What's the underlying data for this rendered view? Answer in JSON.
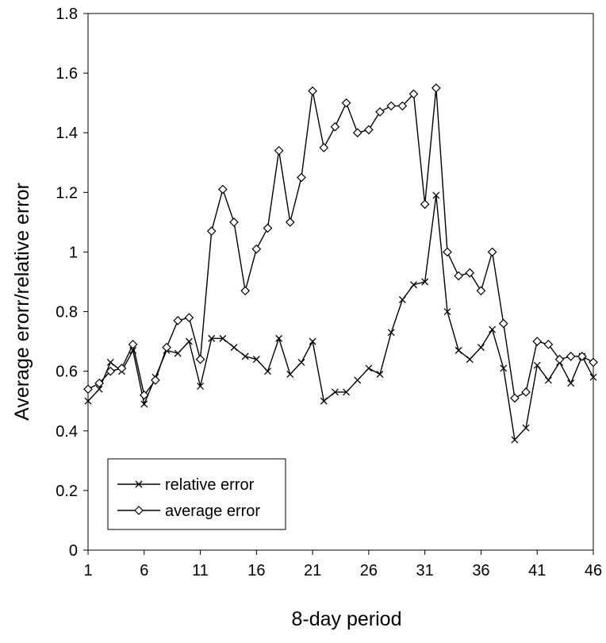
{
  "chart_data": {
    "type": "line",
    "title": "",
    "xlabel": "8-day period",
    "ylabel": "Average erorr/relative error",
    "xlim": [
      1,
      46
    ],
    "ylim": [
      0,
      1.8
    ],
    "x_ticks": [
      1,
      6,
      11,
      16,
      21,
      26,
      31,
      36,
      41,
      46
    ],
    "y_ticks": [
      0,
      0.2,
      0.4,
      0.6,
      0.8,
      1,
      1.2,
      1.4,
      1.6,
      1.8
    ],
    "y_tick_labels": [
      "0",
      "0.2",
      "0.4",
      "0.6",
      "0.8",
      "1",
      "1.2",
      "1.4",
      "1.6",
      "1.8"
    ],
    "grid": false,
    "legend_position": "bottom-left",
    "x": [
      1,
      2,
      3,
      4,
      5,
      6,
      7,
      8,
      9,
      10,
      11,
      12,
      13,
      14,
      15,
      16,
      17,
      18,
      19,
      20,
      21,
      22,
      23,
      24,
      25,
      26,
      27,
      28,
      29,
      30,
      31,
      32,
      33,
      34,
      35,
      36,
      37,
      38,
      39,
      40,
      41,
      42,
      43,
      44,
      45,
      46
    ],
    "series": [
      {
        "name": "relative error",
        "marker": "x",
        "color": "#000000",
        "values": [
          0.5,
          0.54,
          0.63,
          0.6,
          0.67,
          0.49,
          0.58,
          0.67,
          0.66,
          0.7,
          0.55,
          0.71,
          0.71,
          0.68,
          0.65,
          0.64,
          0.6,
          0.71,
          0.59,
          0.63,
          0.7,
          0.5,
          0.53,
          0.53,
          0.57,
          0.61,
          0.59,
          0.73,
          0.84,
          0.89,
          0.9,
          1.19,
          0.8,
          0.67,
          0.64,
          0.68,
          0.74,
          0.61,
          0.37,
          0.41,
          0.62,
          0.57,
          0.63,
          0.56,
          0.65,
          0.58
        ]
      },
      {
        "name": "average error",
        "marker": "diamond",
        "color": "#000000",
        "values": [
          0.54,
          0.56,
          0.6,
          0.61,
          0.69,
          0.52,
          0.57,
          0.68,
          0.77,
          0.78,
          0.64,
          1.07,
          1.21,
          1.1,
          0.87,
          1.01,
          1.08,
          1.34,
          1.1,
          1.25,
          1.54,
          1.35,
          1.42,
          1.5,
          1.4,
          1.41,
          1.47,
          1.49,
          1.49,
          1.53,
          1.16,
          1.55,
          1.0,
          0.92,
          0.93,
          0.87,
          1.0,
          0.76,
          0.51,
          0.53,
          0.7,
          0.69,
          0.64,
          0.65,
          0.65,
          0.63
        ]
      }
    ]
  }
}
